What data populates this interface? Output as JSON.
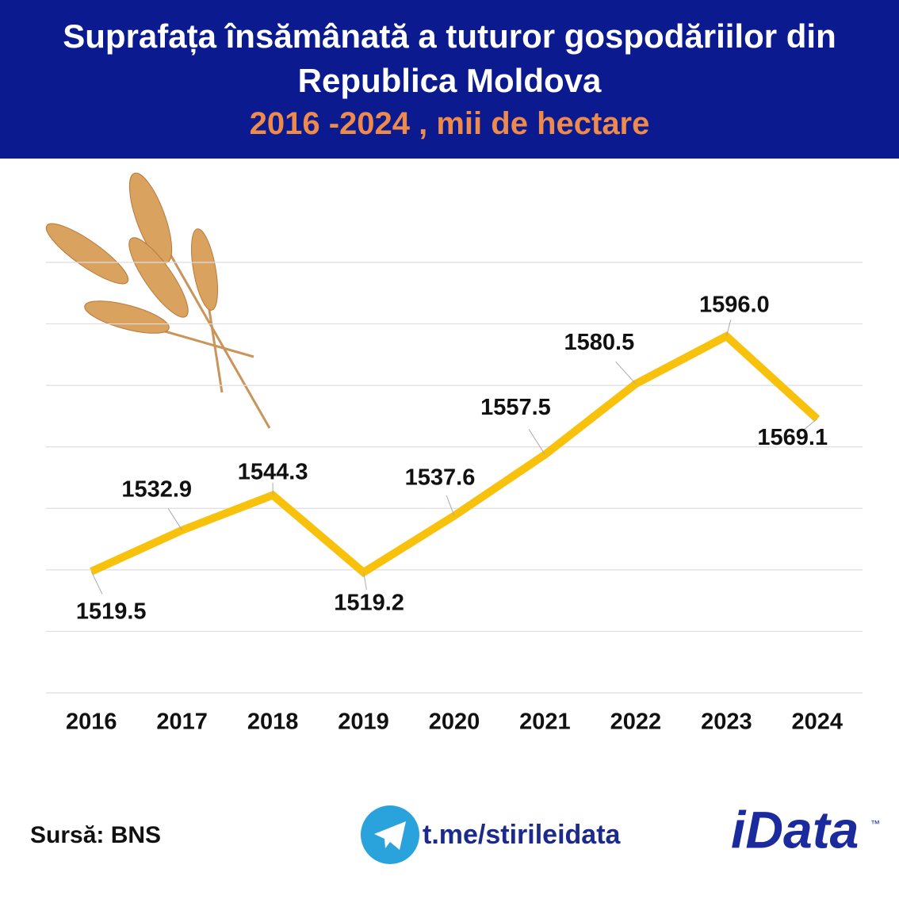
{
  "chart_data": {
    "type": "line",
    "title": "Suprafața însămânată a tuturor gospodăriilor din Republica Moldova",
    "subtitle": "2016 -2024 , mii de hectare",
    "categories": [
      "2016",
      "2017",
      "2018",
      "2019",
      "2020",
      "2021",
      "2022",
      "2023",
      "2024"
    ],
    "series": [
      {
        "name": "Suprafața însămânată",
        "color": "#f8c10c",
        "values": [
          1519.5,
          1532.9,
          1544.3,
          1519.2,
          1537.6,
          1557.5,
          1580.5,
          1596.0,
          1569.1
        ],
        "value_labels": [
          "1519.5",
          "1532.9",
          "1544.3",
          "1519.2",
          "1537.6",
          "1557.5",
          "1580.5",
          "1596.0",
          "1569.1"
        ]
      }
    ],
    "ylim": [
      1480,
      1620
    ],
    "yticks": [
      1480,
      1500,
      1520,
      1540,
      1560,
      1580,
      1600,
      1620
    ],
    "ytick_labels": false,
    "grid": true,
    "legend": false
  },
  "footer": {
    "source": "Sursă: BNS",
    "link": "t.me/stirileidata",
    "logo": "iData",
    "trademark": "™"
  }
}
